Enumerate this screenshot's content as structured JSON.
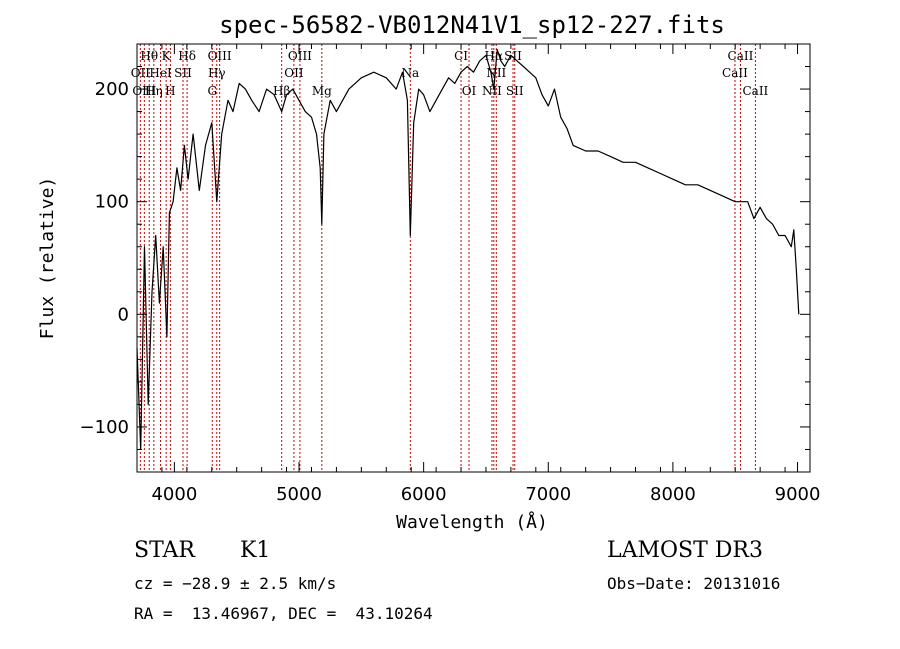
{
  "chart_data": {
    "type": "line",
    "title": "spec-56582-VB012N41V1_sp12-227.fits",
    "xlabel": "Wavelength (Å)",
    "ylabel": "Flux (relative)",
    "xlim": [
      3700,
      9100
    ],
    "ylim": [
      -140,
      240
    ],
    "xticks": [
      4000,
      5000,
      6000,
      7000,
      8000,
      9000
    ],
    "yticks": [
      -100,
      0,
      100,
      200
    ],
    "series": [
      {
        "name": "spectrum",
        "color": "#000000",
        "x": [
          3700,
          3730,
          3760,
          3790,
          3820,
          3850,
          3880,
          3910,
          3940,
          3960,
          3990,
          4020,
          4050,
          4080,
          4110,
          4150,
          4200,
          4250,
          4300,
          4340,
          4380,
          4430,
          4470,
          4520,
          4570,
          4620,
          4680,
          4740,
          4800,
          4861,
          4900,
          4950,
          5000,
          5050,
          5100,
          5140,
          5170,
          5183,
          5200,
          5250,
          5300,
          5400,
          5500,
          5600,
          5700,
          5780,
          5830,
          5870,
          5893,
          5920,
          5960,
          6000,
          6050,
          6100,
          6150,
          6200,
          6250,
          6300,
          6350,
          6400,
          6450,
          6500,
          6540,
          6563,
          6590,
          6620,
          6650,
          6700,
          6750,
          6800,
          6850,
          6900,
          6950,
          7000,
          7050,
          7100,
          7150,
          7200,
          7300,
          7400,
          7500,
          7600,
          7700,
          7800,
          7900,
          8000,
          8100,
          8200,
          8300,
          8400,
          8500,
          8600,
          8650,
          8700,
          8750,
          8800,
          8850,
          8900,
          8950,
          8970,
          8990,
          9010
        ],
        "y": [
          -30,
          -120,
          60,
          -80,
          20,
          70,
          10,
          60,
          -20,
          90,
          100,
          130,
          110,
          150,
          120,
          160,
          110,
          150,
          170,
          100,
          160,
          190,
          180,
          205,
          200,
          190,
          180,
          200,
          195,
          180,
          195,
          200,
          190,
          180,
          175,
          160,
          130,
          80,
          160,
          190,
          180,
          200,
          210,
          215,
          210,
          200,
          215,
          190,
          70,
          170,
          200,
          195,
          180,
          190,
          200,
          210,
          205,
          215,
          220,
          215,
          225,
          230,
          215,
          200,
          235,
          225,
          220,
          230,
          225,
          220,
          215,
          210,
          195,
          185,
          200,
          175,
          165,
          150,
          145,
          145,
          140,
          135,
          135,
          130,
          125,
          120,
          115,
          115,
          110,
          105,
          100,
          100,
          85,
          95,
          85,
          80,
          70,
          70,
          60,
          75,
          40,
          0
        ]
      }
    ],
    "spectral_lines": [
      {
        "label": "Hθ",
        "wave": 3798,
        "row": 0
      },
      {
        "label": "K",
        "wave": 3934,
        "row": 0
      },
      {
        "label": "Hδ",
        "wave": 4102,
        "row": 0
      },
      {
        "label": "OIII",
        "wave": 4363,
        "row": 0
      },
      {
        "label": "OIII",
        "wave": 5007,
        "row": 0
      },
      {
        "label": "CI",
        "wave": 6300,
        "row": 0
      },
      {
        "label": "Hα",
        "wave": 6563,
        "row": 0
      },
      {
        "label": "SII",
        "wave": 6717,
        "row": 0
      },
      {
        "label": "CaII",
        "wave": 8542,
        "row": 0
      },
      {
        "label": "OII",
        "wave": 3727,
        "row": 1
      },
      {
        "label": "HeI",
        "wave": 3889,
        "row": 1
      },
      {
        "label": "SII",
        "wave": 4069,
        "row": 1
      },
      {
        "label": "Hγ",
        "wave": 4340,
        "row": 1
      },
      {
        "label": "OII",
        "wave": 4959,
        "row": 1
      },
      {
        "label": "Na",
        "wave": 5893,
        "row": 1
      },
      {
        "label": "NII",
        "wave": 6583,
        "row": 1
      },
      {
        "label": "CaII",
        "wave": 8498,
        "row": 1
      },
      {
        "label": "OIII",
        "wave": 3759,
        "row": 2
      },
      {
        "label": "Hη",
        "wave": 3835,
        "row": 2
      },
      {
        "label": "H",
        "wave": 3968,
        "row": 2
      },
      {
        "label": "G",
        "wave": 4304,
        "row": 2
      },
      {
        "label": "Hβ",
        "wave": 4861,
        "row": 2
      },
      {
        "label": "Mg",
        "wave": 5183,
        "row": 2
      },
      {
        "label": "OI",
        "wave": 6364,
        "row": 2
      },
      {
        "label": "NII",
        "wave": 6548,
        "row": 2
      },
      {
        "label": "SII",
        "wave": 6731,
        "row": 2
      },
      {
        "label": "CaII",
        "wave": 8662,
        "row": 2
      }
    ]
  },
  "info": {
    "class": "STAR",
    "subclass": "K1",
    "survey": "LAMOST DR3",
    "cz": "cz = −28.9 ± 2.5 km/s",
    "obs_date": "Obs−Date: 20131016",
    "coords": "RA =  13.46967, DEC =  43.10264"
  },
  "colors": {
    "line_marker": "#cc0000",
    "spectrum": "#000000"
  }
}
